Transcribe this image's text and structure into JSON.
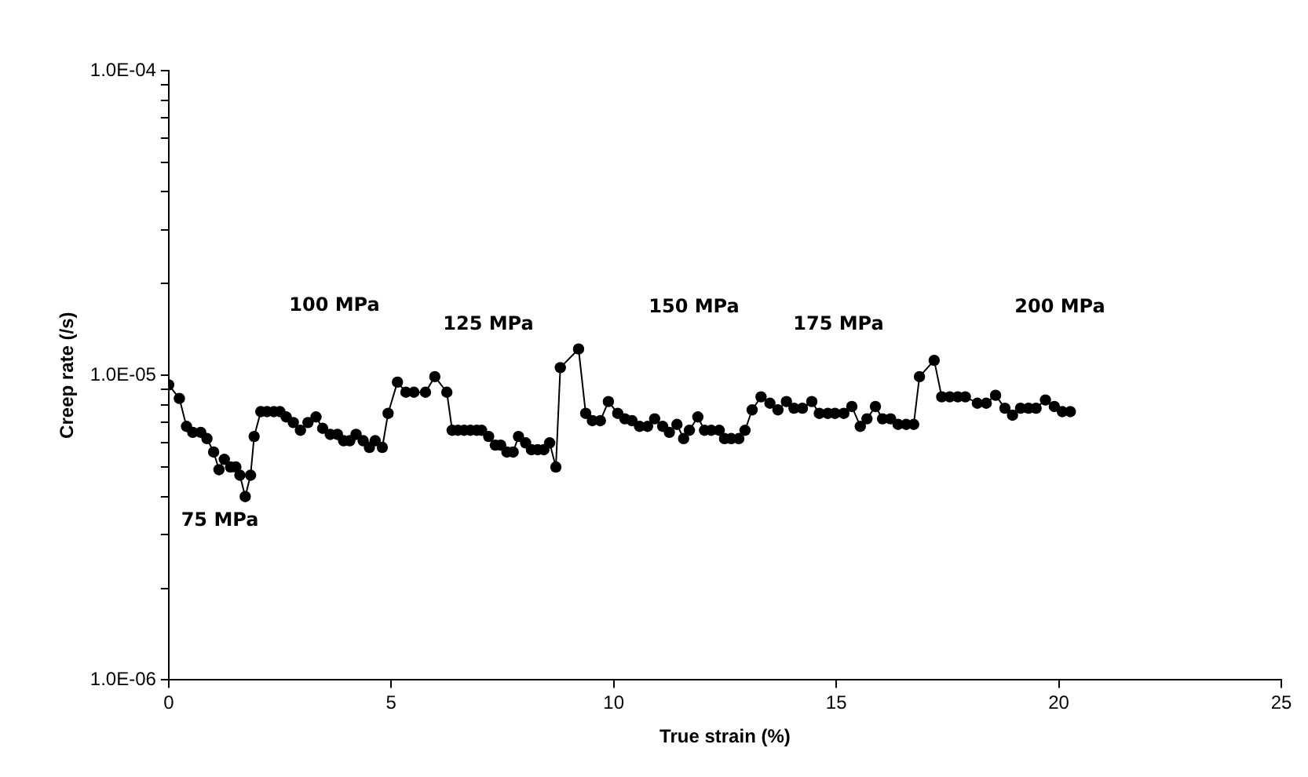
{
  "chart_data": {
    "type": "line",
    "xlabel": "True strain (%)",
    "ylabel": "Creep rate (/s)",
    "log": "y",
    "grid": false,
    "legend": false,
    "marker": "circle",
    "line_style": "solid",
    "xlim": [
      0,
      25
    ],
    "xticks": [
      0,
      5,
      10,
      15,
      20,
      25
    ],
    "ylim": [
      1e-06,
      0.0001
    ],
    "yticks": [
      {
        "value": 1e-06,
        "label": "1.0E-06"
      },
      {
        "value": 2e-06,
        "label": null
      },
      {
        "value": 3e-06,
        "label": null
      },
      {
        "value": 4e-06,
        "label": null
      },
      {
        "value": 5e-06,
        "label": null
      },
      {
        "value": 6e-06,
        "label": null
      },
      {
        "value": 7e-06,
        "label": null
      },
      {
        "value": 8e-06,
        "label": null
      },
      {
        "value": 9e-06,
        "label": null
      },
      {
        "value": 1e-05,
        "label": "1.0E-05"
      },
      {
        "value": 2e-05,
        "label": null
      },
      {
        "value": 3e-05,
        "label": null
      },
      {
        "value": 4e-05,
        "label": null
      },
      {
        "value": 5e-05,
        "label": null
      },
      {
        "value": 6e-05,
        "label": null
      },
      {
        "value": 7e-05,
        "label": null
      },
      {
        "value": 8e-05,
        "label": null
      },
      {
        "value": 9e-05,
        "label": null
      },
      {
        "value": 0.0001,
        "label": "1.0E-04"
      }
    ],
    "series": [
      {
        "color": "#000000",
        "x": [
          0,
          0.24,
          0.4,
          0.54,
          0.72,
          0.86,
          1.01,
          1.13,
          1.25,
          1.39,
          1.51,
          1.6,
          1.72,
          1.84,
          1.92,
          2.07,
          2.21,
          2.36,
          2.5,
          2.64,
          2.8,
          2.96,
          3.13,
          3.31,
          3.46,
          3.63,
          3.79,
          3.93,
          4.07,
          4.21,
          4.37,
          4.51,
          4.64,
          4.8,
          4.93,
          5.14,
          5.33,
          5.51,
          5.77,
          5.98,
          6.25,
          6.37,
          6.5,
          6.64,
          6.78,
          6.92,
          7.03,
          7.19,
          7.34,
          7.46,
          7.6,
          7.74,
          7.86,
          8.02,
          8.15,
          8.29,
          8.43,
          8.56,
          8.7,
          8.8,
          9.21,
          9.37,
          9.52,
          9.7,
          9.88,
          10.09,
          10.25,
          10.41,
          10.58,
          10.76,
          10.92,
          11.1,
          11.25,
          11.42,
          11.57,
          11.7,
          11.89,
          12.04,
          12.19,
          12.37,
          12.49,
          12.64,
          12.81,
          12.95,
          13.11,
          13.31,
          13.51,
          13.69,
          13.88,
          14.05,
          14.24,
          14.45,
          14.62,
          14.81,
          14.97,
          15.17,
          15.35,
          15.54,
          15.69,
          15.88,
          16.04,
          16.22,
          16.39,
          16.57,
          16.74,
          16.87,
          17.2,
          17.37,
          17.55,
          17.73,
          17.9,
          18.17,
          18.37,
          18.58,
          18.79,
          18.96,
          19.14,
          19.32,
          19.49,
          19.7,
          19.9,
          20.08,
          20.26
        ],
        "values": [
          9.3e-06,
          8.4e-06,
          6.8e-06,
          6.5e-06,
          6.5e-06,
          6.2e-06,
          5.6e-06,
          4.9e-06,
          5.3e-06,
          5e-06,
          5e-06,
          4.7e-06,
          4e-06,
          4.7e-06,
          6.3e-06,
          7.6e-06,
          7.6e-06,
          7.6e-06,
          7.6e-06,
          7.3e-06,
          7e-06,
          6.6e-06,
          7e-06,
          7.3e-06,
          6.7e-06,
          6.4e-06,
          6.4e-06,
          6.1e-06,
          6.1e-06,
          6.4e-06,
          6.1e-06,
          5.8e-06,
          6.1e-06,
          5.8e-06,
          7.5e-06,
          9.5e-06,
          8.8e-06,
          8.8e-06,
          8.8e-06,
          9.9e-06,
          8.8e-06,
          6.6e-06,
          6.6e-06,
          6.6e-06,
          6.6e-06,
          6.6e-06,
          6.6e-06,
          6.3e-06,
          5.9e-06,
          5.9e-06,
          5.6e-06,
          5.6e-06,
          6.3e-06,
          6e-06,
          5.7e-06,
          5.7e-06,
          5.7e-06,
          6e-06,
          5e-06,
          1.06e-05,
          1.22e-05,
          7.5e-06,
          7.1e-06,
          7.1e-06,
          8.2e-06,
          7.5e-06,
          7.2e-06,
          7.1e-06,
          6.8e-06,
          6.8e-06,
          7.2e-06,
          6.8e-06,
          6.5e-06,
          6.9e-06,
          6.2e-06,
          6.6e-06,
          7.3e-06,
          6.6e-06,
          6.6e-06,
          6.6e-06,
          6.2e-06,
          6.2e-06,
          6.2e-06,
          6.6e-06,
          7.7e-06,
          8.5e-06,
          8.1e-06,
          7.7e-06,
          8.2e-06,
          7.8e-06,
          7.8e-06,
          8.2e-06,
          7.5e-06,
          7.5e-06,
          7.5e-06,
          7.5e-06,
          7.9e-06,
          6.8e-06,
          7.2e-06,
          7.9e-06,
          7.2e-06,
          7.2e-06,
          6.9e-06,
          6.9e-06,
          6.9e-06,
          9.9e-06,
          1.12e-05,
          8.5e-06,
          8.5e-06,
          8.5e-06,
          8.5e-06,
          8.1e-06,
          8.1e-06,
          8.6e-06,
          7.8e-06,
          7.4e-06,
          7.8e-06,
          7.8e-06,
          7.8e-06,
          8.3e-06,
          7.9e-06,
          7.6e-06,
          7.6e-06
        ]
      }
    ],
    "annotations": [
      "75 MPa",
      "100 MPa",
      "125 MPa",
      "150 MPa",
      "175 MPa",
      "200 MPa"
    ]
  }
}
